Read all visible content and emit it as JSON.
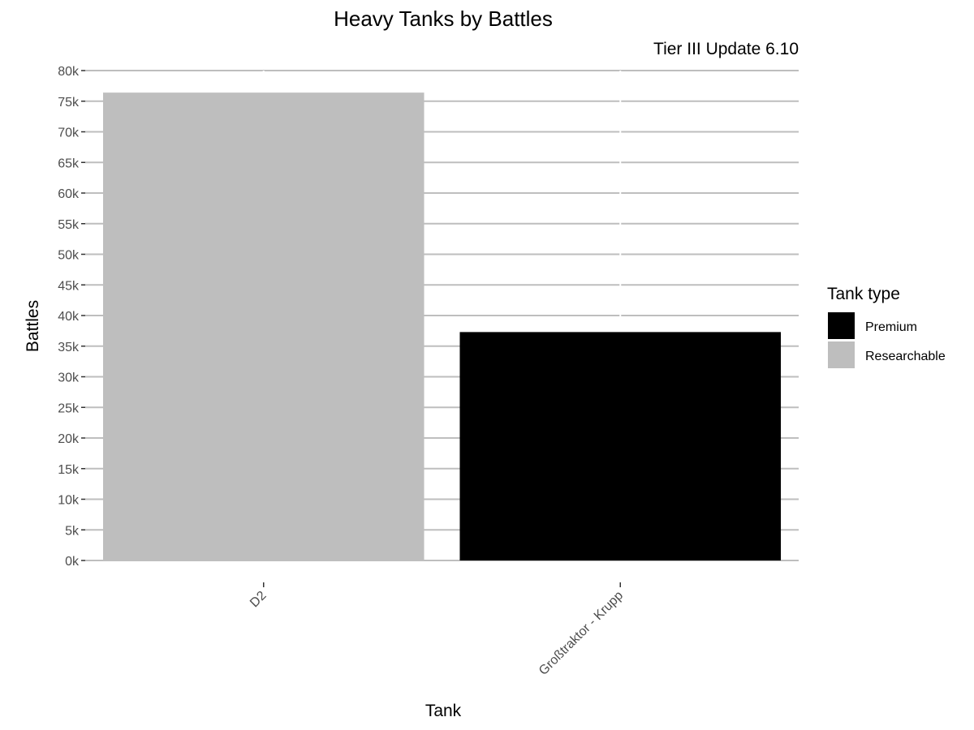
{
  "chart_data": {
    "type": "bar",
    "title": "Heavy Tanks by Battles",
    "subtitle": "Tier III Update 6.10",
    "xlabel": "Tank",
    "ylabel": "Battles",
    "categories": [
      "D2",
      "Großtraktor - Krupp"
    ],
    "values": [
      76400,
      37300
    ],
    "bar_types": [
      "Researchable",
      "Premium"
    ],
    "ylim": [
      0,
      80000
    ],
    "yticks": [
      0,
      5000,
      10000,
      15000,
      20000,
      25000,
      30000,
      35000,
      40000,
      45000,
      50000,
      55000,
      60000,
      65000,
      70000,
      75000,
      80000
    ],
    "ytick_labels": [
      "0k",
      "5k",
      "10k",
      "15k",
      "20k",
      "25k",
      "30k",
      "35k",
      "40k",
      "45k",
      "50k",
      "55k",
      "60k",
      "65k",
      "70k",
      "75k",
      "80k"
    ],
    "grid": true,
    "legend": {
      "title": "Tank type",
      "position": "right",
      "items": [
        {
          "label": "Premium",
          "color": "#000000"
        },
        {
          "label": "Researchable",
          "color": "#bebebe"
        }
      ]
    },
    "colors": {
      "Premium": "#000000",
      "Researchable": "#bebebe"
    }
  }
}
